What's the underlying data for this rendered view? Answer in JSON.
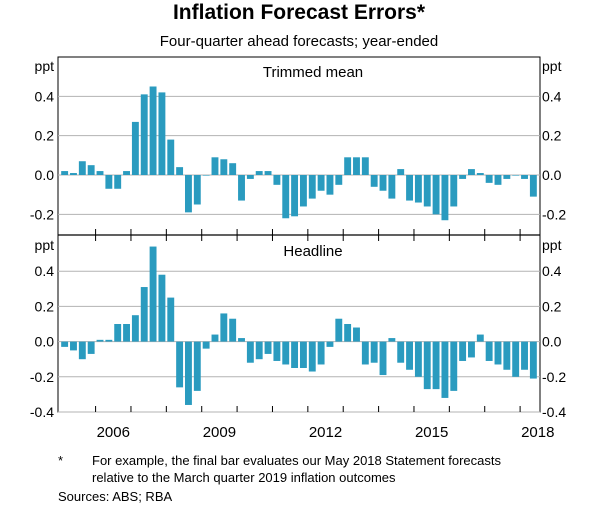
{
  "chart_data": {
    "type": "bar",
    "title": "Inflation Forecast Errors*",
    "subtitle": "Four-quarter ahead forecasts; year-ended",
    "unit_label": "ppt",
    "x_tick_labels": [
      "2006",
      "2009",
      "2012",
      "2015",
      "2018"
    ],
    "x_start_year": 2005,
    "quarters": [
      "2005Q1",
      "2005Q2",
      "2005Q3",
      "2005Q4",
      "2006Q1",
      "2006Q2",
      "2006Q3",
      "2006Q4",
      "2007Q1",
      "2007Q2",
      "2007Q3",
      "2007Q4",
      "2008Q1",
      "2008Q2",
      "2008Q3",
      "2008Q4",
      "2009Q1",
      "2009Q2",
      "2009Q3",
      "2009Q4",
      "2010Q1",
      "2010Q2",
      "2010Q3",
      "2010Q4",
      "2011Q1",
      "2011Q2",
      "2011Q3",
      "2011Q4",
      "2012Q1",
      "2012Q2",
      "2012Q3",
      "2012Q4",
      "2013Q1",
      "2013Q2",
      "2013Q3",
      "2013Q4",
      "2014Q1",
      "2014Q2",
      "2014Q3",
      "2014Q4",
      "2015Q1",
      "2015Q2",
      "2015Q3",
      "2015Q4",
      "2016Q1",
      "2016Q2",
      "2016Q3",
      "2016Q4",
      "2017Q1",
      "2017Q2",
      "2017Q3",
      "2017Q4",
      "2018Q1",
      "2018Q2"
    ],
    "panels": [
      {
        "name": "Trimmed mean",
        "y_ticks": [
          0.4,
          0.2,
          0.0,
          -0.2
        ],
        "y_tick_labels": [
          "0.4",
          "0.2",
          "0.0",
          "-0.2"
        ],
        "ylim": [
          -0.3,
          0.6
        ],
        "values": [
          0.02,
          0.01,
          0.07,
          0.05,
          0.02,
          -0.07,
          -0.07,
          0.02,
          0.27,
          0.41,
          0.45,
          0.42,
          0.18,
          0.04,
          -0.19,
          -0.15,
          0.0,
          0.09,
          0.08,
          0.06,
          -0.13,
          -0.02,
          0.02,
          0.02,
          -0.05,
          -0.22,
          -0.21,
          -0.16,
          -0.12,
          -0.08,
          -0.1,
          -0.05,
          0.09,
          0.09,
          0.09,
          -0.06,
          -0.08,
          -0.12,
          0.03,
          -0.13,
          -0.14,
          -0.16,
          -0.2,
          -0.23,
          -0.16,
          -0.02,
          0.03,
          0.01,
          -0.04,
          -0.05,
          -0.02,
          0.0,
          -0.02,
          -0.11
        ]
      },
      {
        "name": "Headline",
        "y_ticks": [
          0.4,
          0.2,
          0.0,
          -0.2,
          -0.4
        ],
        "y_tick_labels": [
          "0.4",
          "0.2",
          "0.0",
          "-0.2",
          "-0.4"
        ],
        "ylim": [
          -0.4,
          0.6
        ],
        "values": [
          -0.03,
          -0.05,
          -0.1,
          -0.07,
          0.01,
          0.01,
          0.1,
          0.1,
          0.15,
          0.31,
          0.54,
          0.38,
          0.25,
          -0.26,
          -0.36,
          -0.28,
          -0.04,
          0.04,
          0.16,
          0.13,
          0.02,
          -0.12,
          -0.1,
          -0.07,
          -0.11,
          -0.13,
          -0.15,
          -0.15,
          -0.17,
          -0.13,
          -0.03,
          0.13,
          0.1,
          0.08,
          -0.13,
          -0.12,
          -0.19,
          0.02,
          -0.12,
          -0.16,
          -0.2,
          -0.27,
          -0.27,
          -0.32,
          -0.28,
          -0.11,
          -0.09,
          0.04,
          -0.11,
          -0.13,
          -0.16,
          -0.2,
          -0.16,
          -0.21
        ]
      }
    ],
    "bar_color": "#2a9bbf",
    "gridline_color": "#b3b3b3",
    "grid": true,
    "legend": "none"
  },
  "footnote": {
    "marker": "*",
    "text": "For example, the final bar evaluates our May 2018 Statement forecasts relative to the March quarter 2019 inflation outcomes"
  },
  "sources": "Sources:   ABS; RBA"
}
